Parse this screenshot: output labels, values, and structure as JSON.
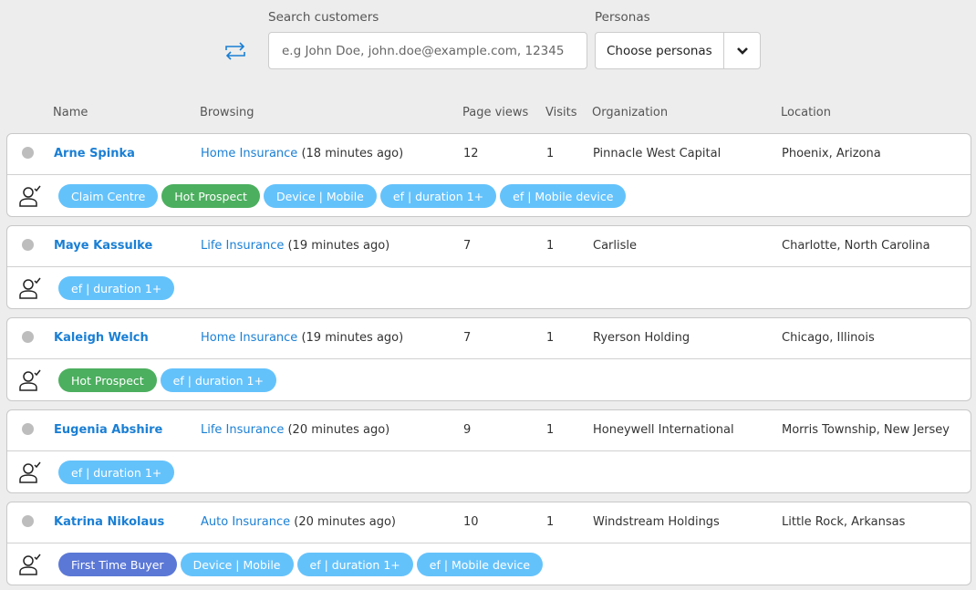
{
  "header": {
    "search_label": "Search customers",
    "search_placeholder": "e.g John Doe, john.doe@example.com, 12345",
    "personas_label": "Personas",
    "personas_value": "Choose personas"
  },
  "colors": {
    "accent": "#1a7fd4",
    "tag_default": "#64c2fb",
    "tag_hot": "#4caf5f",
    "tag_first": "#5b78d6"
  },
  "columns": [
    "Name",
    "Browsing",
    "Page views",
    "Visits",
    "Organization",
    "Location"
  ],
  "rows": [
    {
      "name": "Arne Spinka",
      "page": "Home Insurance",
      "ago": "(18 minutes ago)",
      "views": "12",
      "visits": "1",
      "org": "Pinnacle West Capital",
      "loc": "Phoenix, Arizona",
      "tags": [
        {
          "label": "Claim Centre",
          "kind": "default"
        },
        {
          "label": "Hot Prospect",
          "kind": "hot"
        },
        {
          "label": "Device | Mobile",
          "kind": "default"
        },
        {
          "label": "ef | duration 1+",
          "kind": "default"
        },
        {
          "label": "ef | Mobile device",
          "kind": "default"
        }
      ]
    },
    {
      "name": "Maye Kassulke",
      "page": "Life Insurance",
      "ago": "(19 minutes ago)",
      "views": "7",
      "visits": "1",
      "org": "Carlisle",
      "loc": "Charlotte, North Carolina",
      "tags": [
        {
          "label": "ef | duration 1+",
          "kind": "default"
        }
      ]
    },
    {
      "name": "Kaleigh Welch",
      "page": "Home Insurance",
      "ago": "(19 minutes ago)",
      "views": "7",
      "visits": "1",
      "org": "Ryerson Holding",
      "loc": "Chicago, Illinois",
      "tags": [
        {
          "label": "Hot Prospect",
          "kind": "hot"
        },
        {
          "label": "ef | duration 1+",
          "kind": "default"
        }
      ]
    },
    {
      "name": "Eugenia Abshire",
      "page": "Life Insurance",
      "ago": "(20 minutes ago)",
      "views": "9",
      "visits": "1",
      "org": "Honeywell International",
      "loc": "Morris Township, New Jersey",
      "tags": [
        {
          "label": "ef | duration 1+",
          "kind": "default"
        }
      ]
    },
    {
      "name": "Katrina Nikolaus",
      "page": "Auto Insurance",
      "ago": "(20 minutes ago)",
      "views": "10",
      "visits": "1",
      "org": "Windstream Holdings",
      "loc": "Little Rock, Arkansas",
      "tags": [
        {
          "label": "First Time Buyer",
          "kind": "first"
        },
        {
          "label": "Device | Mobile",
          "kind": "default"
        },
        {
          "label": "ef | duration 1+",
          "kind": "default"
        },
        {
          "label": "ef | Mobile device",
          "kind": "default"
        }
      ]
    }
  ]
}
